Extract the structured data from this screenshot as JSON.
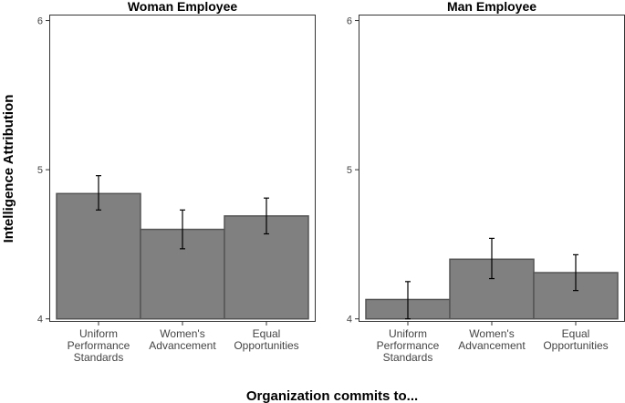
{
  "ylabel": "Intelligence Attribution",
  "xlabel": "Organization commits to...",
  "chart_data": [
    {
      "type": "bar",
      "title": "Woman Employee",
      "categories": [
        "Uniform Performance Standards",
        "Women's Advancement",
        "Equal Opportunities"
      ],
      "category_lines": [
        [
          "Uniform",
          "Performance",
          "Standards"
        ],
        [
          "Women's",
          "Advancement"
        ],
        [
          "Equal",
          "Opportunities"
        ]
      ],
      "values": [
        4.84,
        4.6,
        4.69
      ],
      "error_low": [
        4.73,
        4.47,
        4.57
      ],
      "error_high": [
        4.96,
        4.73,
        4.81
      ],
      "ylim": [
        3.98,
        6.04
      ],
      "yticks": [
        4,
        5,
        6
      ],
      "baseline": 4,
      "bar_color": "#808080",
      "grid": false
    },
    {
      "type": "bar",
      "title": "Man Employee",
      "categories": [
        "Uniform Performance Standards",
        "Women's Advancement",
        "Equal Opportunities"
      ],
      "category_lines": [
        [
          "Uniform",
          "Performance",
          "Standards"
        ],
        [
          "Women's",
          "Advancement"
        ],
        [
          "Equal",
          "Opportunities"
        ]
      ],
      "values": [
        4.13,
        4.4,
        4.31
      ],
      "error_low": [
        4.0,
        4.27,
        4.19
      ],
      "error_high": [
        4.25,
        4.54,
        4.43
      ],
      "ylim": [
        3.98,
        6.04
      ],
      "yticks": [
        4,
        5,
        6
      ],
      "baseline": 4,
      "bar_color": "#808080",
      "grid": false
    }
  ]
}
